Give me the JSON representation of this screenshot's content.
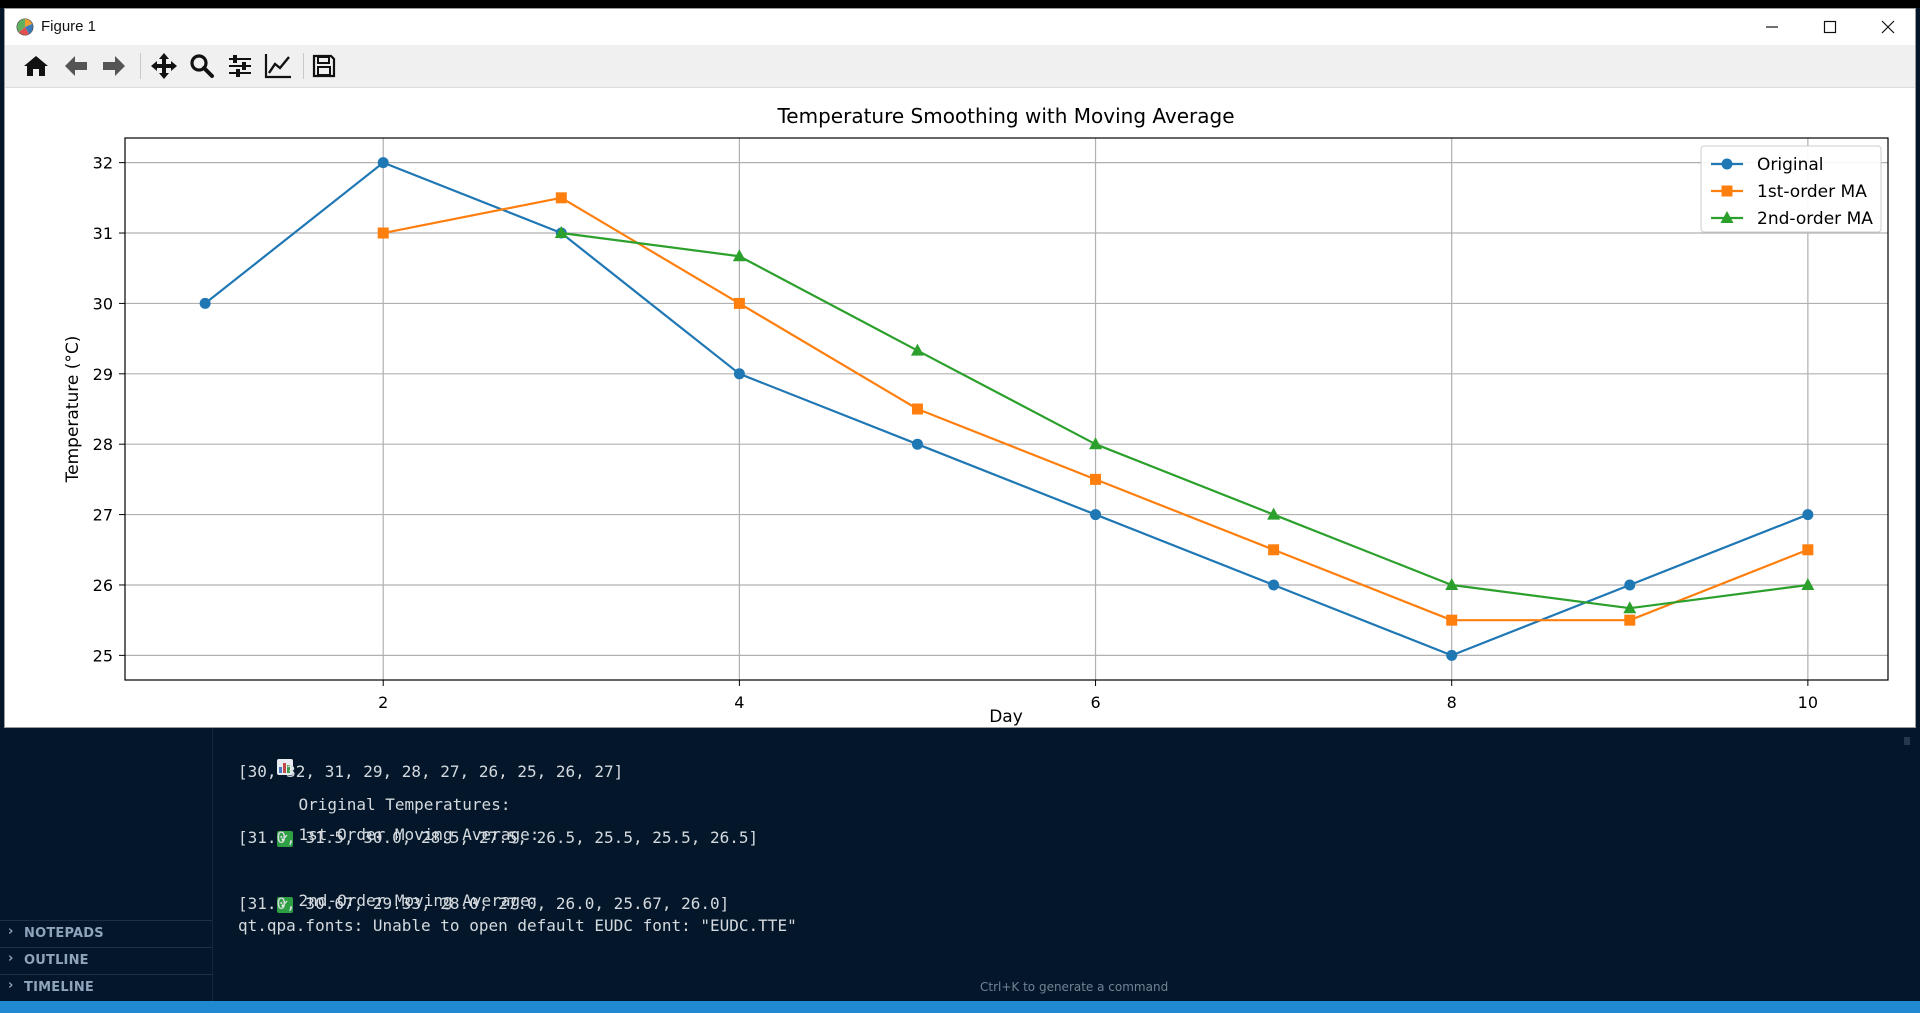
{
  "window": {
    "title": "Figure 1"
  },
  "toolbar": {
    "buttons": [
      "home-icon",
      "back-arrow-icon",
      "forward-arrow-icon",
      "pan-move-icon",
      "zoom-magnifier-icon",
      "configure-subplots-icon",
      "edit-axes-icon",
      "save-icon"
    ]
  },
  "sidebar": {
    "sections": [
      "NOTEPADS",
      "OUTLINE",
      "TIMELINE"
    ]
  },
  "terminal": {
    "line1": "Original Temperatures:",
    "line2": "[30, 32, 31, 29, 28, 27, 26, 25, 26, 27]",
    "line3": "1st-Order Moving Average:",
    "line4": "[31.0, 31.5, 30.0, 28.5, 27.5, 26.5, 25.5, 25.5, 26.5]",
    "line5": "2nd-Order Moving Average:",
    "line6": "[31.0, 30.67, 29.33, 28.0, 27.0, 26.0, 25.67, 26.0]",
    "line7": "qt.qpa.fonts: Unable to open default EUDC font: \"EUDC.TTE\""
  },
  "hint": "Ctrl+K to generate a command",
  "colors": {
    "ide_bg": "#04172a",
    "statusbar": "#1f8ad2"
  },
  "chart_data": {
    "type": "line",
    "title": "Temperature Smoothing with Moving Average",
    "xlabel": "Day",
    "ylabel": "Temperature (°C)",
    "xlim": [
      0.55,
      10.45
    ],
    "ylim": [
      24.65,
      32.35
    ],
    "xticks": [
      2,
      4,
      6,
      8,
      10
    ],
    "yticks": [
      25,
      26,
      27,
      28,
      29,
      30,
      31,
      32
    ],
    "grid": true,
    "legend_position": "top-right",
    "series": [
      {
        "name": "Original",
        "color": "#1f77b4",
        "marker": "circle",
        "x": [
          1,
          2,
          3,
          4,
          5,
          6,
          7,
          8,
          9,
          10
        ],
        "y": [
          30,
          32,
          31,
          29,
          28,
          27,
          26,
          25,
          26,
          27
        ]
      },
      {
        "name": "1st-order MA",
        "color": "#ff7f0e",
        "marker": "square",
        "x": [
          2,
          3,
          4,
          5,
          6,
          7,
          8,
          9,
          10
        ],
        "y": [
          31.0,
          31.5,
          30.0,
          28.5,
          27.5,
          26.5,
          25.5,
          25.5,
          26.5
        ]
      },
      {
        "name": "2nd-order MA",
        "color": "#2ca02c",
        "marker": "triangle",
        "x": [
          3,
          4,
          5,
          6,
          7,
          8,
          9,
          10
        ],
        "y": [
          31.0,
          30.67,
          29.33,
          28.0,
          27.0,
          26.0,
          25.67,
          26.0
        ]
      }
    ]
  }
}
